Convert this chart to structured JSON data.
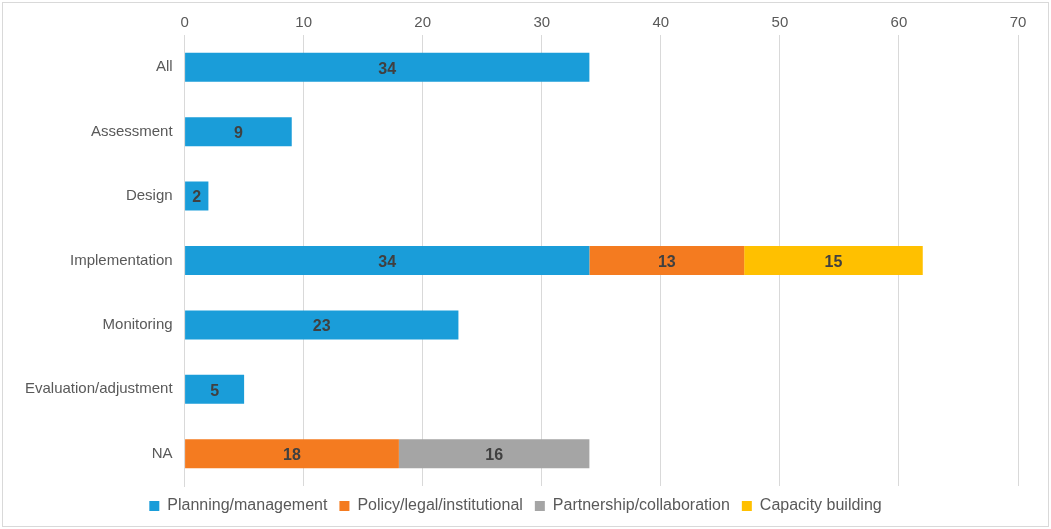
{
  "chart_data": {
    "type": "bar",
    "orientation": "horizontal",
    "stacked": true,
    "categories": [
      "All",
      "Assessment",
      "Design",
      "Implementation",
      "Monitoring",
      "Evaluation/adjustment",
      "NA"
    ],
    "series": [
      {
        "name": "Planning/management",
        "color": "#1a9dd9",
        "values": [
          34,
          9,
          2,
          34,
          23,
          5,
          null
        ]
      },
      {
        "name": "Policy/legal/institutional",
        "color": "#f47b20",
        "values": [
          null,
          null,
          null,
          13,
          null,
          null,
          18
        ]
      },
      {
        "name": "Partnership/collaboration",
        "color": "#a5a5a5",
        "values": [
          null,
          null,
          null,
          null,
          null,
          null,
          16
        ]
      },
      {
        "name": "Capacity building",
        "color": "#ffc000",
        "values": [
          null,
          null,
          null,
          15,
          null,
          null,
          null
        ]
      }
    ],
    "xlim": [
      0,
      70
    ],
    "xticks": [
      0,
      10,
      20,
      30,
      40,
      50,
      60,
      70
    ],
    "grid": "x",
    "legend": "bottom",
    "data_labels": true
  }
}
